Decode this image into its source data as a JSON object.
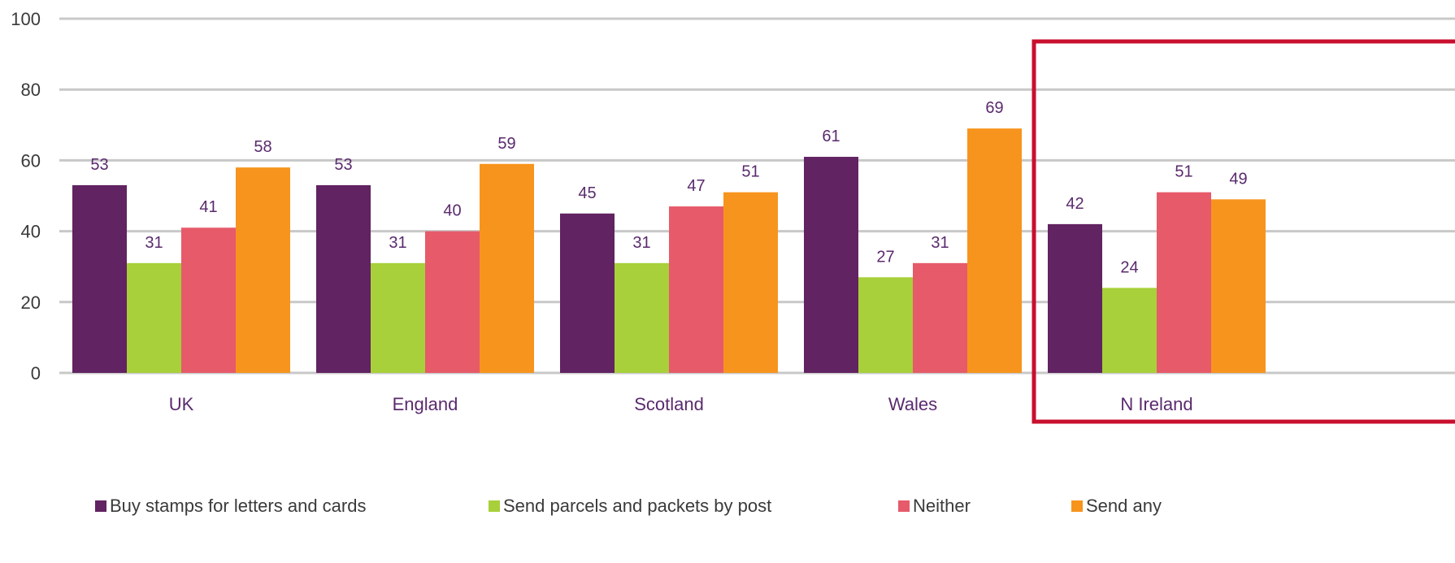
{
  "chart_data": {
    "type": "bar",
    "categories": [
      "UK",
      "England",
      "Scotland",
      "Wales",
      "N Ireland"
    ],
    "series": [
      {
        "name": "Buy stamps for letters and cards",
        "color": "#612361",
        "values": [
          53,
          53,
          45,
          61,
          42
        ]
      },
      {
        "name": "Send parcels and packets by post",
        "color": "#a8d03a",
        "values": [
          31,
          31,
          31,
          27,
          24
        ]
      },
      {
        "name": "Neither",
        "color": "#e65a6a",
        "values": [
          41,
          40,
          47,
          31,
          51
        ]
      },
      {
        "name": "Send any",
        "color": "#f7941d",
        "values": [
          58,
          59,
          51,
          69,
          49
        ]
      }
    ],
    "ylim": [
      0,
      100
    ],
    "yticks": [
      0,
      20,
      40,
      60,
      80,
      100
    ],
    "grid": true,
    "legend_position": "bottom",
    "highlight_category": "N Ireland",
    "highlight_color": "#c8102e",
    "grid_color": "#c8c8c8"
  }
}
